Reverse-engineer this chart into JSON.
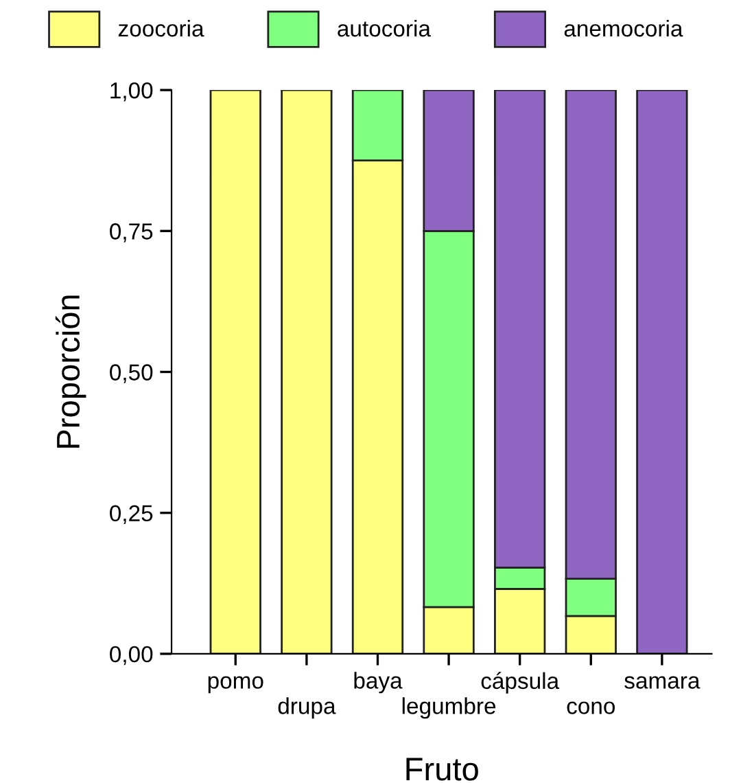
{
  "chart_data": {
    "type": "bar",
    "stacked": true,
    "xlabel": "Fruto",
    "ylabel": "Proporción",
    "categories": [
      "pomo",
      "drupa",
      "baya",
      "legumbre",
      "cápsula",
      "cono",
      "samara"
    ],
    "series": [
      {
        "name": "zoocoria",
        "color": "#ffff80",
        "values": [
          1,
          1,
          0.875,
          0.083,
          0.115,
          0.067,
          0
        ]
      },
      {
        "name": "autocoria",
        "color": "#80ff80",
        "values": [
          0,
          0,
          0.125,
          0.667,
          0.038,
          0.066,
          0
        ]
      },
      {
        "name": "anemocoria",
        "color": "#8f66c2",
        "values": [
          0,
          0,
          0,
          0.25,
          0.847,
          0.867,
          1
        ]
      }
    ],
    "ylim": [
      0,
      1
    ],
    "yticks": [
      {
        "value": 0,
        "label": "0,00"
      },
      {
        "value": 0.25,
        "label": "0,25"
      },
      {
        "value": 0.5,
        "label": "0,50"
      },
      {
        "value": 0.75,
        "label": "0,75"
      },
      {
        "value": 1,
        "label": "1,00"
      }
    ],
    "grid": false,
    "legend": "top"
  }
}
